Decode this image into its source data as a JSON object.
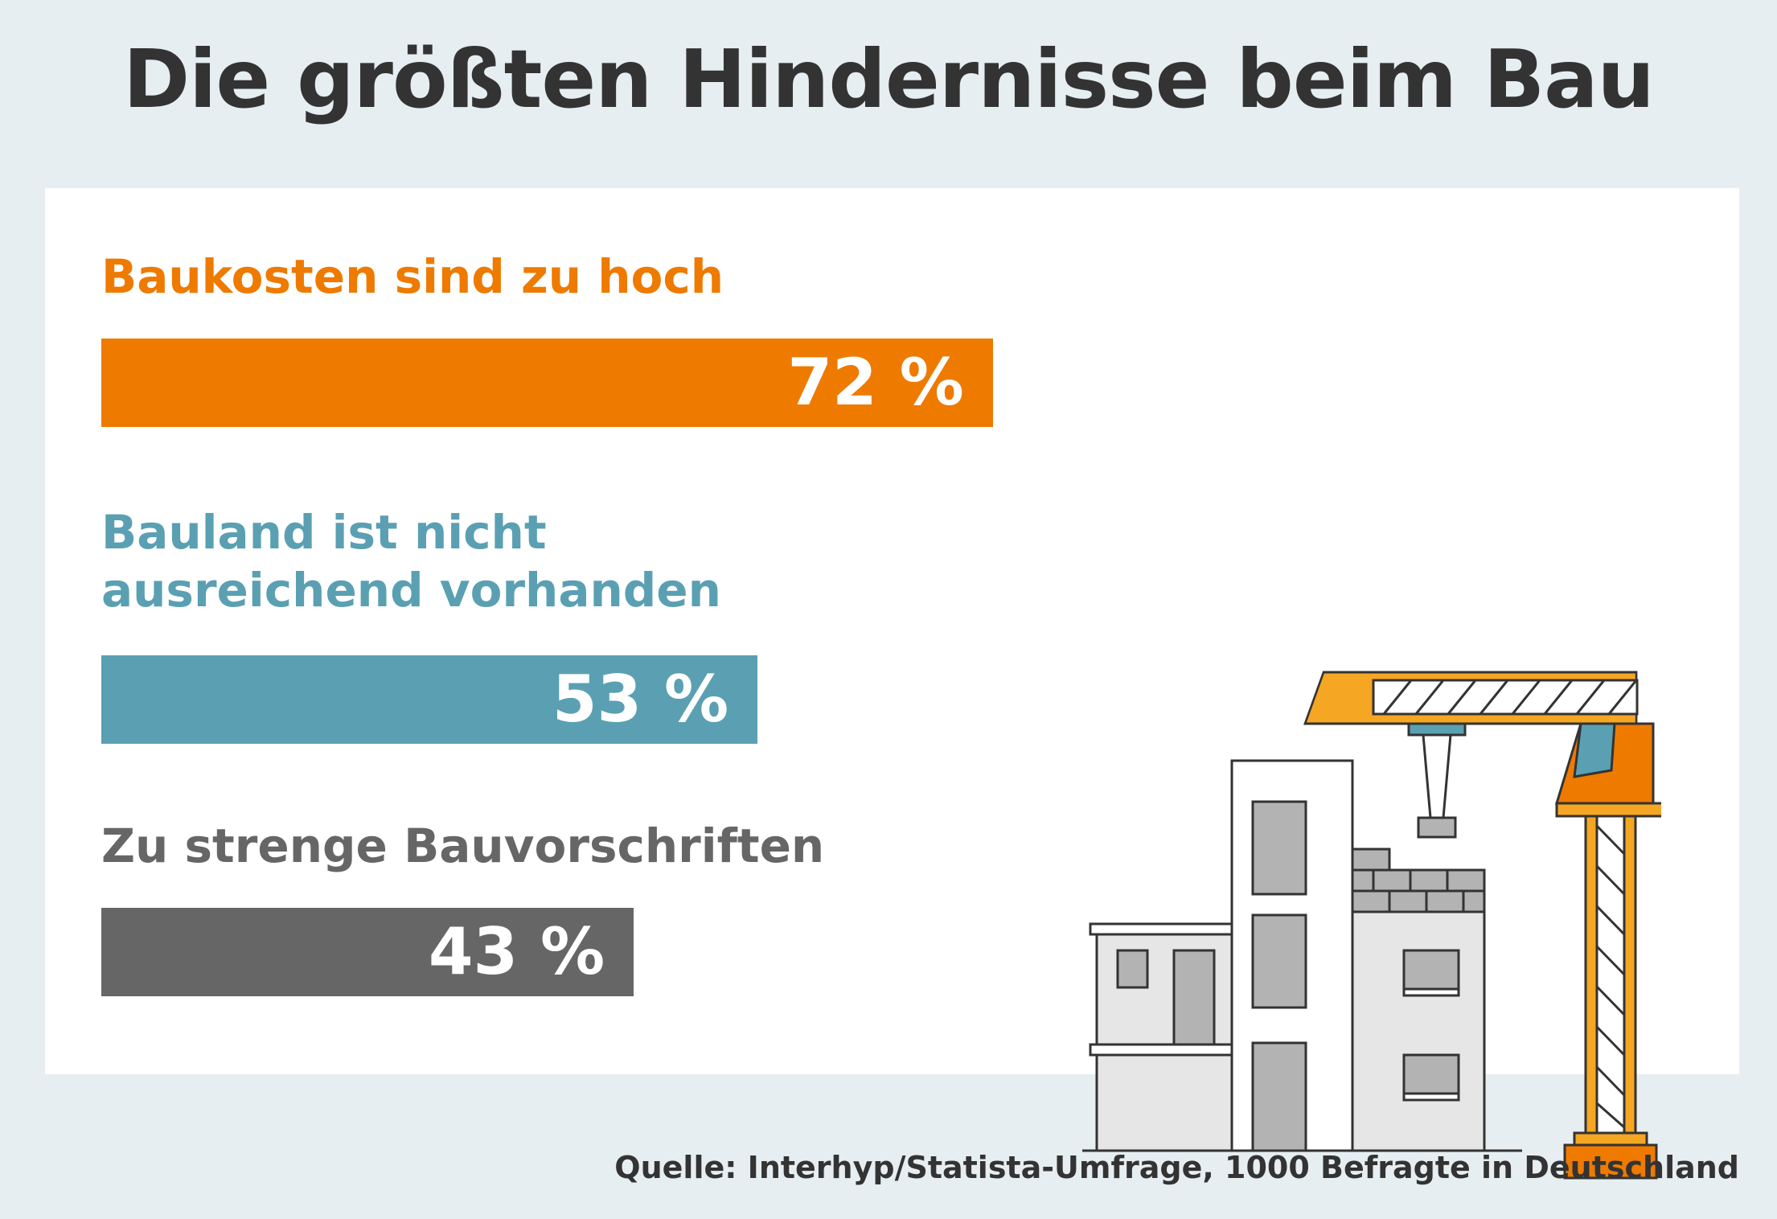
{
  "title": "Die größten Hindernisse beim Bau",
  "source": "Quelle: Interhyp/Statista-Umfrage, 1000 Befragte in Deutschland",
  "chart_data": {
    "type": "bar",
    "orientation": "horizontal",
    "title": "Die größten Hindernisse beim Bau",
    "categories": [
      "Baukosten sind zu hoch",
      "Bauland ist nicht ausreichend vorhanden",
      "Zu strenge Bauvorschriften"
    ],
    "values": [
      72,
      53,
      43
    ],
    "value_labels": [
      "72 %",
      "53 %",
      "43 %"
    ],
    "colors": [
      "#ee7a00",
      "#5aa0b2",
      "#666666"
    ],
    "unit": "%",
    "xlim": [
      0,
      100
    ],
    "grid": false
  },
  "illustration": {
    "icon": "construction-crane-building-icon",
    "colors": {
      "crane": "#f5a623",
      "crane_accent": "#ee7a00",
      "cabin_glass": "#5aa0b2",
      "window": "#b3b3b3",
      "wall": "#e6e6e6"
    }
  }
}
